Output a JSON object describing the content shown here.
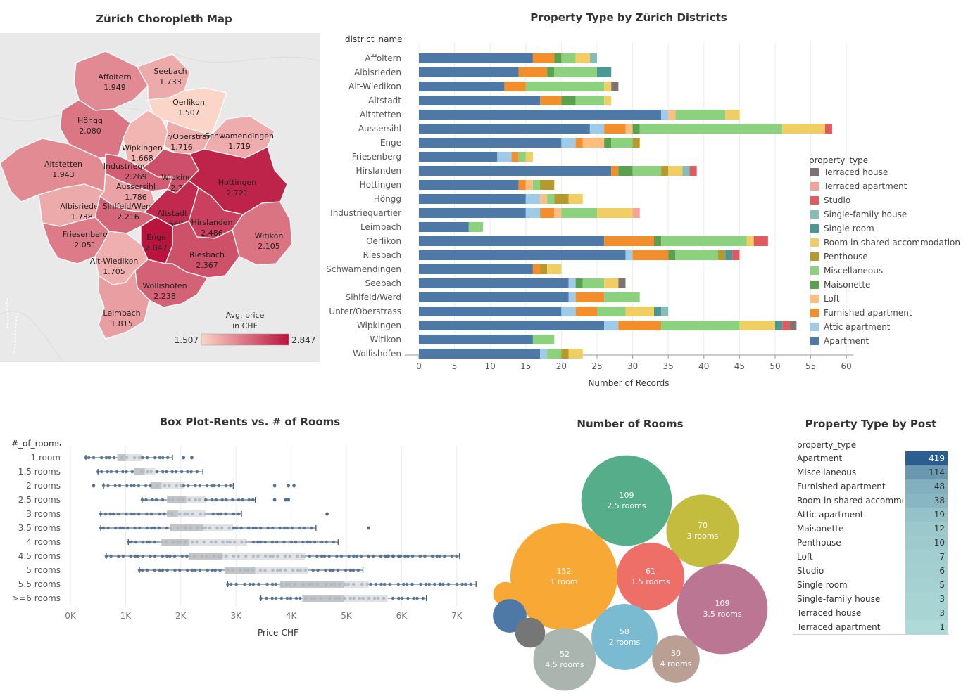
{
  "map": {
    "title": "Zürich Choropleth Map",
    "legend_title_1": "Avg. price",
    "legend_title_2": "in CHF",
    "legend_min": "1.507",
    "legend_max": "2.847",
    "scale_min": 1.507,
    "scale_max": 2.847,
    "districts": [
      {
        "name": "Affoltern",
        "value": "1.949",
        "num": 1.949
      },
      {
        "name": "Seebach",
        "value": "1.733",
        "num": 1.733
      },
      {
        "name": "Oerlikon",
        "value": "1.507",
        "num": 1.507
      },
      {
        "name": "Höngg",
        "value": "2.080",
        "num": 2.08
      },
      {
        "name": "Unter/Oberstrass",
        "value": "1.716",
        "num": 1.716
      },
      {
        "name": "Schwamendingen",
        "value": "1.719",
        "num": 1.719
      },
      {
        "name": "Wipkingen",
        "value": "1.668",
        "num": 1.668
      },
      {
        "name": "Altstetten",
        "value": "1.943",
        "num": 1.943
      },
      {
        "name": "Industriequartier",
        "value": "2.269",
        "num": 2.269
      },
      {
        "name": "Wipkingen",
        "value": "2.378",
        "num": 2.378
      },
      {
        "name": "Hottingen",
        "value": "2.721",
        "num": 2.721
      },
      {
        "name": "Aussersihl",
        "value": "1.786",
        "num": 1.786
      },
      {
        "name": "Albisrieden",
        "value": "1.738",
        "num": 1.738
      },
      {
        "name": "Sihlfeld/Werd",
        "value": "2.216",
        "num": 2.216
      },
      {
        "name": "Altstadt",
        "value": "2.669",
        "num": 2.669
      },
      {
        "name": "Hirslanden",
        "value": "2.486",
        "num": 2.486
      },
      {
        "name": "Friesenberg",
        "value": "2.051",
        "num": 2.051
      },
      {
        "name": "Enge",
        "value": "2.847",
        "num": 2.847
      },
      {
        "name": "Witikon",
        "value": "2.105",
        "num": 2.105
      },
      {
        "name": "Alt-Wiedikon",
        "value": "1.705",
        "num": 1.705
      },
      {
        "name": "Riesbach",
        "value": "2.367",
        "num": 2.367
      },
      {
        "name": "Wollishofen",
        "value": "2.238",
        "num": 2.238
      },
      {
        "name": "Leimbach",
        "value": "1.815",
        "num": 1.815
      }
    ]
  },
  "chart_data": [
    {
      "type": "bar",
      "title": "Property Type by Zürich Districts",
      "row_header": "district_name",
      "xlabel": "Number of Records",
      "xlim": [
        0,
        60
      ],
      "ticks": [
        0,
        5,
        10,
        15,
        20,
        25,
        30,
        35,
        40,
        45,
        50,
        55,
        60
      ],
      "legend_title": "property_type",
      "legend_position": "right",
      "legend": [
        {
          "name": "Terraced house",
          "color": "#7f7271"
        },
        {
          "name": "Terraced apartment",
          "color": "#f5a29a"
        },
        {
          "name": "Studio",
          "color": "#e05a5f"
        },
        {
          "name": "Single-family house",
          "color": "#86bcb6"
        },
        {
          "name": "Single room",
          "color": "#499894"
        },
        {
          "name": "Room in shared accommodation",
          "color": "#f1ce63"
        },
        {
          "name": "Penthouse",
          "color": "#b6992d"
        },
        {
          "name": "Miscellaneous",
          "color": "#8cd17d"
        },
        {
          "name": "Maisonette",
          "color": "#59a14f"
        },
        {
          "name": "Loft",
          "color": "#ffbe7d"
        },
        {
          "name": "Furnished apartment",
          "color": "#f28e2b"
        },
        {
          "name": "Attic apartment",
          "color": "#a0cbe8"
        },
        {
          "name": "Apartment",
          "color": "#4e79a7"
        }
      ],
      "categories": [
        "Affoltern",
        "Albisrieden",
        "Alt-Wiedikon",
        "Altstadt",
        "Altstetten",
        "Aussersihl",
        "Enge",
        "Friesenberg",
        "Hirslanden",
        "Hottingen",
        "Höngg",
        "Industriequartier",
        "Leimbach",
        "Oerlikon",
        "Riesbach",
        "Schwamendingen",
        "Seebach",
        "Sihlfeld/Werd",
        "Unter/Oberstrass",
        "Wipkingen",
        "Witikon",
        "Wollishofen"
      ],
      "stacks": [
        [
          [
            "Apartment",
            16
          ],
          [
            "Furnished apartment",
            3
          ],
          [
            "Maisonette",
            1
          ],
          [
            "Miscellaneous",
            2
          ],
          [
            "Room in shared accommodation",
            2
          ],
          [
            "Single-family house",
            1
          ]
        ],
        [
          [
            "Apartment",
            14
          ],
          [
            "Furnished apartment",
            4
          ],
          [
            "Maisonette",
            1
          ],
          [
            "Miscellaneous",
            6
          ],
          [
            "Single room",
            2
          ]
        ],
        [
          [
            "Apartment",
            12
          ],
          [
            "Furnished apartment",
            3
          ],
          [
            "Miscellaneous",
            11
          ],
          [
            "Room in shared accommodation",
            1
          ],
          [
            "Terraced house",
            1
          ]
        ],
        [
          [
            "Apartment",
            17
          ],
          [
            "Furnished apartment",
            3
          ],
          [
            "Maisonette",
            2
          ],
          [
            "Miscellaneous",
            4
          ],
          [
            "Room in shared accommodation",
            1
          ]
        ],
        [
          [
            "Apartment",
            34
          ],
          [
            "Attic apartment",
            1
          ],
          [
            "Loft",
            1
          ],
          [
            "Miscellaneous",
            7
          ],
          [
            "Room in shared accommodation",
            2
          ]
        ],
        [
          [
            "Apartment",
            24
          ],
          [
            "Attic apartment",
            2
          ],
          [
            "Furnished apartment",
            3
          ],
          [
            "Loft",
            1
          ],
          [
            "Maisonette",
            1
          ],
          [
            "Miscellaneous",
            20
          ],
          [
            "Room in shared accommodation",
            6
          ],
          [
            "Studio",
            1
          ]
        ],
        [
          [
            "Apartment",
            20
          ],
          [
            "Attic apartment",
            2
          ],
          [
            "Furnished apartment",
            1
          ],
          [
            "Loft",
            3
          ],
          [
            "Maisonette",
            1
          ],
          [
            "Miscellaneous",
            3
          ],
          [
            "Penthouse",
            1
          ]
        ],
        [
          [
            "Apartment",
            11
          ],
          [
            "Attic apartment",
            2
          ],
          [
            "Furnished apartment",
            1
          ],
          [
            "Miscellaneous",
            1
          ],
          [
            "Room in shared accommodation",
            1
          ]
        ],
        [
          [
            "Apartment",
            27
          ],
          [
            "Furnished apartment",
            1
          ],
          [
            "Maisonette",
            2
          ],
          [
            "Miscellaneous",
            4
          ],
          [
            "Penthouse",
            1
          ],
          [
            "Room in shared accommodation",
            2
          ],
          [
            "Single-family house",
            1
          ],
          [
            "Studio",
            1
          ]
        ],
        [
          [
            "Apartment",
            14
          ],
          [
            "Furnished apartment",
            1
          ],
          [
            "Loft",
            1
          ],
          [
            "Miscellaneous",
            1
          ],
          [
            "Penthouse",
            2
          ]
        ],
        [
          [
            "Apartment",
            15
          ],
          [
            "Attic apartment",
            2
          ],
          [
            "Loft",
            1
          ],
          [
            "Miscellaneous",
            1
          ],
          [
            "Penthouse",
            2
          ],
          [
            "Room in shared accommodation",
            2
          ]
        ],
        [
          [
            "Apartment",
            15
          ],
          [
            "Attic apartment",
            2
          ],
          [
            "Furnished apartment",
            2
          ],
          [
            "Loft",
            1
          ],
          [
            "Miscellaneous",
            5
          ],
          [
            "Room in shared accommodation",
            5
          ],
          [
            "Terraced apartment",
            1
          ]
        ],
        [
          [
            "Apartment",
            7
          ],
          [
            "Miscellaneous",
            2
          ]
        ],
        [
          [
            "Apartment",
            26
          ],
          [
            "Furnished apartment",
            7
          ],
          [
            "Maisonette",
            1
          ],
          [
            "Miscellaneous",
            12
          ],
          [
            "Room in shared accommodation",
            1
          ],
          [
            "Studio",
            2
          ]
        ],
        [
          [
            "Apartment",
            29
          ],
          [
            "Attic apartment",
            1
          ],
          [
            "Furnished apartment",
            5
          ],
          [
            "Maisonette",
            1
          ],
          [
            "Miscellaneous",
            6
          ],
          [
            "Penthouse",
            1
          ],
          [
            "Single room",
            1
          ],
          [
            "Studio",
            1
          ]
        ],
        [
          [
            "Apartment",
            16
          ],
          [
            "Furnished apartment",
            1
          ],
          [
            "Penthouse",
            1
          ],
          [
            "Room in shared accommodation",
            2
          ]
        ],
        [
          [
            "Apartment",
            21
          ],
          [
            "Attic apartment",
            1
          ],
          [
            "Maisonette",
            1
          ],
          [
            "Miscellaneous",
            3
          ],
          [
            "Room in shared accommodation",
            2
          ],
          [
            "Terraced house",
            1
          ]
        ],
        [
          [
            "Apartment",
            21
          ],
          [
            "Attic apartment",
            1
          ],
          [
            "Furnished apartment",
            4
          ],
          [
            "Miscellaneous",
            5
          ]
        ],
        [
          [
            "Apartment",
            20
          ],
          [
            "Attic apartment",
            2
          ],
          [
            "Furnished apartment",
            3
          ],
          [
            "Miscellaneous",
            4
          ],
          [
            "Room in shared accommodation",
            4
          ],
          [
            "Single room",
            1
          ],
          [
            "Single-family house",
            1
          ]
        ],
        [
          [
            "Apartment",
            26
          ],
          [
            "Attic apartment",
            2
          ],
          [
            "Furnished apartment",
            6
          ],
          [
            "Miscellaneous",
            11
          ],
          [
            "Room in shared accommodation",
            5
          ],
          [
            "Single room",
            1
          ],
          [
            "Studio",
            1
          ],
          [
            "Terraced house",
            1
          ]
        ],
        [
          [
            "Apartment",
            16
          ],
          [
            "Miscellaneous",
            3
          ]
        ],
        [
          [
            "Apartment",
            17
          ],
          [
            "Attic apartment",
            1
          ],
          [
            "Miscellaneous",
            2
          ],
          [
            "Penthouse",
            1
          ],
          [
            "Room in shared accommodation",
            2
          ]
        ]
      ]
    },
    {
      "type": "scatter",
      "title": "Box Plot-Rents vs. # of Rooms",
      "row_header": "#_of_rooms",
      "xlabel": "Price-CHF",
      "xlim": [
        0,
        7500
      ],
      "ticks": [
        0,
        1000,
        2000,
        3000,
        4000,
        5000,
        6000,
        7000
      ],
      "tick_labels": [
        "0K",
        "1K",
        "2K",
        "3K",
        "4K",
        "5K",
        "6K",
        "7K"
      ],
      "categories": [
        "1 room",
        "1.5 rooms",
        "2 rooms",
        "2.5 rooms",
        "3 rooms",
        "3.5 rooms",
        "4 rooms",
        "4.5 rooms",
        "5 rooms",
        "5.5 rooms",
        ">=6 rooms"
      ],
      "boxes": [
        {
          "min": 280,
          "q1": 850,
          "median": 1000,
          "q3": 1300,
          "max": 1850
        },
        {
          "min": 500,
          "q1": 1150,
          "median": 1350,
          "q3": 1550,
          "max": 2400
        },
        {
          "min": 600,
          "q1": 1450,
          "median": 1650,
          "q3": 2050,
          "max": 2950
        },
        {
          "min": 1300,
          "q1": 1750,
          "median": 2100,
          "q3": 2450,
          "max": 3350
        },
        {
          "min": 550,
          "q1": 1750,
          "median": 1950,
          "q3": 2450,
          "max": 3100
        },
        {
          "min": 550,
          "q1": 1800,
          "median": 2400,
          "q3": 2950,
          "max": 4450
        },
        {
          "min": 1050,
          "q1": 1650,
          "median": 2150,
          "q3": 3200,
          "max": 4850
        },
        {
          "min": 650,
          "q1": 2150,
          "median": 2750,
          "q3": 4250,
          "max": 7050
        },
        {
          "min": 1250,
          "q1": 2800,
          "median": 3350,
          "q3": 4300,
          "max": 5300
        },
        {
          "min": 2850,
          "q1": 3800,
          "median": 4950,
          "q3": 5400,
          "max": 7350
        },
        {
          "min": 3450,
          "q1": 4200,
          "median": 4950,
          "q3": 5750,
          "max": 6450
        }
      ],
      "outliers": [
        [
          2050,
          2200
        ],
        [],
        [
          420,
          3700,
          3950,
          4050
        ],
        [
          3700,
          3900,
          3950
        ],
        [
          4650
        ],
        [
          5400
        ],
        [],
        [
          5750,
          5850,
          5950
        ],
        [],
        [
          6700
        ],
        []
      ]
    },
    {
      "type": "scatter",
      "title": "Number of Rooms",
      "bubbles": [
        {
          "label": "2.5 rooms",
          "value": 109,
          "color": "#55ad89"
        },
        {
          "label": "3 rooms",
          "value": 70,
          "color": "#c3bc3f"
        },
        {
          "label": "1 room",
          "value": 152,
          "color": "#f8a935"
        },
        {
          "label": "1.5 rooms",
          "value": 61,
          "color": "#ee6e68"
        },
        {
          "label": "3.5 rooms",
          "value": 109,
          "color": "#bb7693"
        },
        {
          "label": "2 rooms",
          "value": 58,
          "color": "#7bbbd2"
        },
        {
          "label": "4 rooms",
          "value": 30,
          "color": "#baa094"
        },
        {
          "label": "4.5 rooms",
          "value": 52,
          "color": "#a9b5ae"
        },
        {
          "label": "",
          "value": 8,
          "color": "#f8a935"
        },
        {
          "label": "",
          "value": 15,
          "color": "#4e79a7"
        },
        {
          "label": "",
          "value": 12,
          "color": "#767676"
        }
      ]
    },
    {
      "type": "table",
      "title": "Property Type by Post",
      "column_header": "property_type",
      "rows": [
        {
          "label": "Apartment",
          "value": 419,
          "text": "419"
        },
        {
          "label": "Miscellaneous",
          "value": 114,
          "text": "114"
        },
        {
          "label": "Furnished apartment",
          "value": 48,
          "text": "48"
        },
        {
          "label": "Room in shared accommo..",
          "value": 38,
          "text": "38"
        },
        {
          "label": "Attic apartment",
          "value": 19,
          "text": "19"
        },
        {
          "label": "Maisonette",
          "value": 12,
          "text": "12"
        },
        {
          "label": "Penthouse",
          "value": 10,
          "text": "10"
        },
        {
          "label": "Loft",
          "value": 7,
          "text": "7"
        },
        {
          "label": "Studio",
          "value": 6,
          "text": "6"
        },
        {
          "label": "Single room",
          "value": 5,
          "text": "5"
        },
        {
          "label": "Single-family house",
          "value": 3,
          "text": "3"
        },
        {
          "label": "Terraced house",
          "value": 3,
          "text": "3"
        },
        {
          "label": "Terraced apartment",
          "value": 1,
          "text": "1"
        }
      ]
    }
  ]
}
